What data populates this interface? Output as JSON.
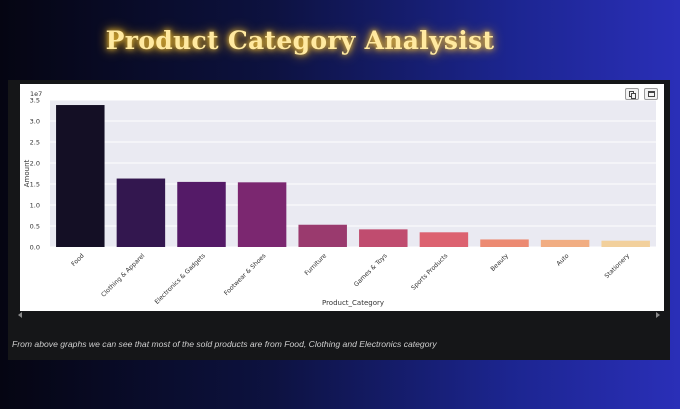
{
  "title": "Product  Category Analysist",
  "notebook": {
    "caption": "From above graphs we can see that most of the sold products are from Food, Clothing and Electronics category"
  },
  "chart_data": {
    "type": "bar",
    "xlabel": "Product_Category",
    "ylabel": "Amount",
    "scale_label": "1e7",
    "ylim": [
      0,
      3.5
    ],
    "yticks": [
      0.0,
      0.5,
      1.0,
      1.5,
      2.0,
      2.5,
      3.0,
      3.5
    ],
    "ytick_labels": [
      "0.0",
      "0.5",
      "1.0",
      "1.5",
      "2.0",
      "2.5",
      "3.0",
      "3.5"
    ],
    "grid": true,
    "categories": [
      "Food",
      "Clothing & Apparel",
      "Electronics & Gadgets",
      "Footwear & Shoes",
      "Furniture",
      "Games & Toys",
      "Sports Products",
      "Beauty",
      "Auto",
      "Stationery"
    ],
    "values": [
      3.38,
      1.63,
      1.55,
      1.54,
      0.53,
      0.42,
      0.35,
      0.18,
      0.17,
      0.15
    ],
    "colors": [
      "#140f25",
      "#33174f",
      "#541a67",
      "#7b2770",
      "#9a3a6e",
      "#c04c6f",
      "#dc6270",
      "#ec8a72",
      "#f1ad82",
      "#f2d09c"
    ]
  }
}
